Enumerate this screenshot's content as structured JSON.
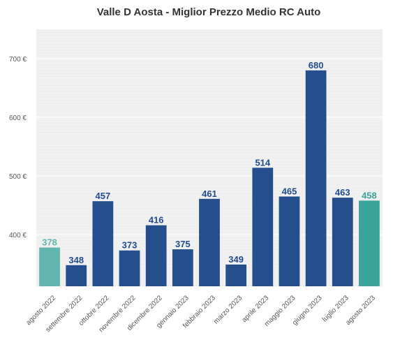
{
  "chart_data": {
    "type": "bar",
    "title": "Valle D Aosta - Miglior Prezzo Medio RC Auto",
    "xlabel": "",
    "ylabel": "",
    "ylim": [
      312,
      750
    ],
    "yticks": [
      400,
      500,
      600,
      700
    ],
    "ytick_labels": [
      "400 €",
      "500 €",
      "600 €",
      "700 €"
    ],
    "categories": [
      "agosto 2022",
      "settembre 2022",
      "ottobre 2022",
      "novembre 2022",
      "dicembre 2022",
      "gennaio 2023",
      "febbraio 2023",
      "marzo 2023",
      "aprile 2023",
      "maggio 2023",
      "giugno 2023",
      "luglio 2023",
      "agosto 2023"
    ],
    "values": [
      378,
      348,
      457,
      373,
      416,
      375,
      461,
      349,
      514,
      465,
      680,
      463,
      458
    ],
    "value_labels": [
      "378",
      "348",
      "457",
      "373",
      "416",
      "375",
      "461",
      "349",
      "514",
      "465",
      "680",
      "463",
      "458"
    ],
    "bar_colors": [
      "#62b5b0",
      "#244f8c",
      "#244f8c",
      "#244f8c",
      "#244f8c",
      "#244f8c",
      "#244f8c",
      "#244f8c",
      "#244f8c",
      "#244f8c",
      "#244f8c",
      "#244f8c",
      "#3aa39b"
    ],
    "label_colors": [
      "#62b5b0",
      "#1f4c8f",
      "#1f4c8f",
      "#1f4c8f",
      "#1f4c8f",
      "#1f4c8f",
      "#1f4c8f",
      "#1f4c8f",
      "#1f4c8f",
      "#1f4c8f",
      "#1f4c8f",
      "#1f4c8f",
      "#3aa39b"
    ],
    "grid": true,
    "background_color": "#efefef",
    "legend": "none"
  }
}
